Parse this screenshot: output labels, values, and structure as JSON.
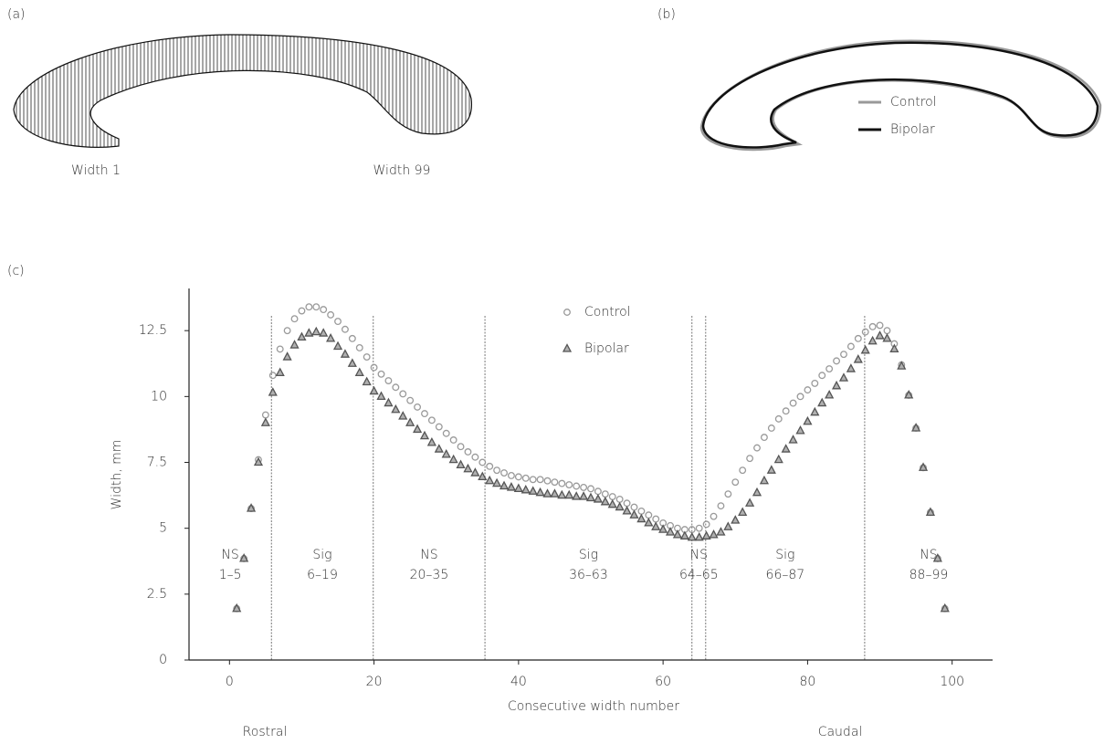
{
  "panel_a": {
    "label": "(a)",
    "left_label": "Width 1",
    "right_label": "Width 99"
  },
  "panel_b": {
    "label": "(b)",
    "legend": [
      {
        "name": "Control",
        "color": "#999999"
      },
      {
        "name": "Bipolar",
        "color": "#111111"
      }
    ]
  },
  "chart_data": {
    "type": "scatter",
    "panel_label": "(c)",
    "x_label": "Consecutive width number",
    "y_label": "Width, mm",
    "left_note": "Rostral",
    "right_note": "Caudal",
    "xlim": [
      -5.6,
      105.6
    ],
    "ylim": [
      0,
      14.1
    ],
    "xticks": [
      0,
      20,
      40,
      60,
      80,
      100
    ],
    "yticks": [
      0,
      2.5,
      5,
      7.5,
      10,
      12.5
    ],
    "region_boundaries": [
      5.8,
      19.9,
      35.35,
      64.0,
      65.9,
      87.9
    ],
    "regions": [
      {
        "name": "NS",
        "range": "1–5"
      },
      {
        "name": "Sig",
        "range": "6–19"
      },
      {
        "name": "NS",
        "range": "20–35"
      },
      {
        "name": "Sig",
        "range": "36–63"
      },
      {
        "name": "NS",
        "range": "64–65"
      },
      {
        "name": "Sig",
        "range": "66–87"
      },
      {
        "name": "NS",
        "range": "88–99"
      }
    ],
    "x": [
      1,
      2,
      3,
      4,
      5,
      6,
      7,
      8,
      9,
      10,
      11,
      12,
      13,
      14,
      15,
      16,
      17,
      18,
      19,
      20,
      21,
      22,
      23,
      24,
      25,
      26,
      27,
      28,
      29,
      30,
      31,
      32,
      33,
      34,
      35,
      36,
      37,
      38,
      39,
      40,
      41,
      42,
      43,
      44,
      45,
      46,
      47,
      48,
      49,
      50,
      51,
      52,
      53,
      54,
      55,
      56,
      57,
      58,
      59,
      60,
      61,
      62,
      63,
      64,
      65,
      66,
      67,
      68,
      69,
      70,
      71,
      72,
      73,
      74,
      75,
      76,
      77,
      78,
      79,
      80,
      81,
      82,
      83,
      84,
      85,
      86,
      87,
      88,
      89,
      90,
      91,
      92,
      93,
      94,
      95,
      96,
      97,
      98,
      99
    ],
    "series": [
      {
        "name": "Control",
        "color": "#9a9a9a",
        "marker": "circle",
        "values": [
          1.95,
          3.85,
          5.75,
          7.6,
          9.3,
          10.8,
          11.8,
          12.5,
          12.95,
          13.25,
          13.4,
          13.4,
          13.3,
          13.1,
          12.85,
          12.55,
          12.2,
          11.85,
          11.5,
          11.1,
          10.85,
          10.6,
          10.35,
          10.1,
          9.85,
          9.6,
          9.35,
          9.1,
          8.85,
          8.6,
          8.35,
          8.1,
          7.9,
          7.7,
          7.5,
          7.35,
          7.2,
          7.1,
          7.0,
          6.95,
          6.9,
          6.85,
          6.85,
          6.8,
          6.75,
          6.7,
          6.65,
          6.6,
          6.55,
          6.5,
          6.4,
          6.3,
          6.2,
          6.1,
          5.95,
          5.8,
          5.65,
          5.5,
          5.35,
          5.2,
          5.1,
          5.0,
          4.95,
          4.95,
          5.0,
          5.15,
          5.45,
          5.85,
          6.3,
          6.75,
          7.2,
          7.65,
          8.05,
          8.45,
          8.8,
          9.15,
          9.45,
          9.75,
          10.0,
          10.25,
          10.5,
          10.8,
          11.05,
          11.35,
          11.6,
          11.9,
          12.2,
          12.45,
          12.65,
          12.7,
          12.5,
          12.0,
          11.2,
          10.05,
          8.8,
          7.3,
          5.6,
          3.85,
          1.95
        ]
      },
      {
        "name": "Bipolar",
        "color": "#555555",
        "marker": "triangle",
        "values": [
          1.95,
          3.85,
          5.75,
          7.5,
          9.0,
          10.15,
          10.9,
          11.5,
          11.95,
          12.25,
          12.4,
          12.45,
          12.4,
          12.2,
          11.9,
          11.6,
          11.25,
          10.9,
          10.55,
          10.2,
          10.0,
          9.75,
          9.5,
          9.25,
          9.0,
          8.75,
          8.5,
          8.25,
          8.0,
          7.8,
          7.6,
          7.4,
          7.25,
          7.1,
          6.95,
          6.8,
          6.7,
          6.6,
          6.55,
          6.5,
          6.45,
          6.4,
          6.35,
          6.3,
          6.3,
          6.25,
          6.25,
          6.2,
          6.2,
          6.15,
          6.1,
          6.0,
          5.9,
          5.8,
          5.65,
          5.5,
          5.35,
          5.2,
          5.05,
          4.95,
          4.85,
          4.75,
          4.7,
          4.65,
          4.65,
          4.7,
          4.75,
          4.85,
          5.05,
          5.3,
          5.6,
          5.95,
          6.35,
          6.8,
          7.2,
          7.6,
          8.0,
          8.35,
          8.7,
          9.05,
          9.4,
          9.75,
          10.05,
          10.4,
          10.7,
          11.05,
          11.4,
          11.75,
          12.1,
          12.3,
          12.2,
          11.8,
          11.15,
          10.05,
          8.8,
          7.3,
          5.6,
          3.85,
          1.95
        ]
      }
    ]
  }
}
